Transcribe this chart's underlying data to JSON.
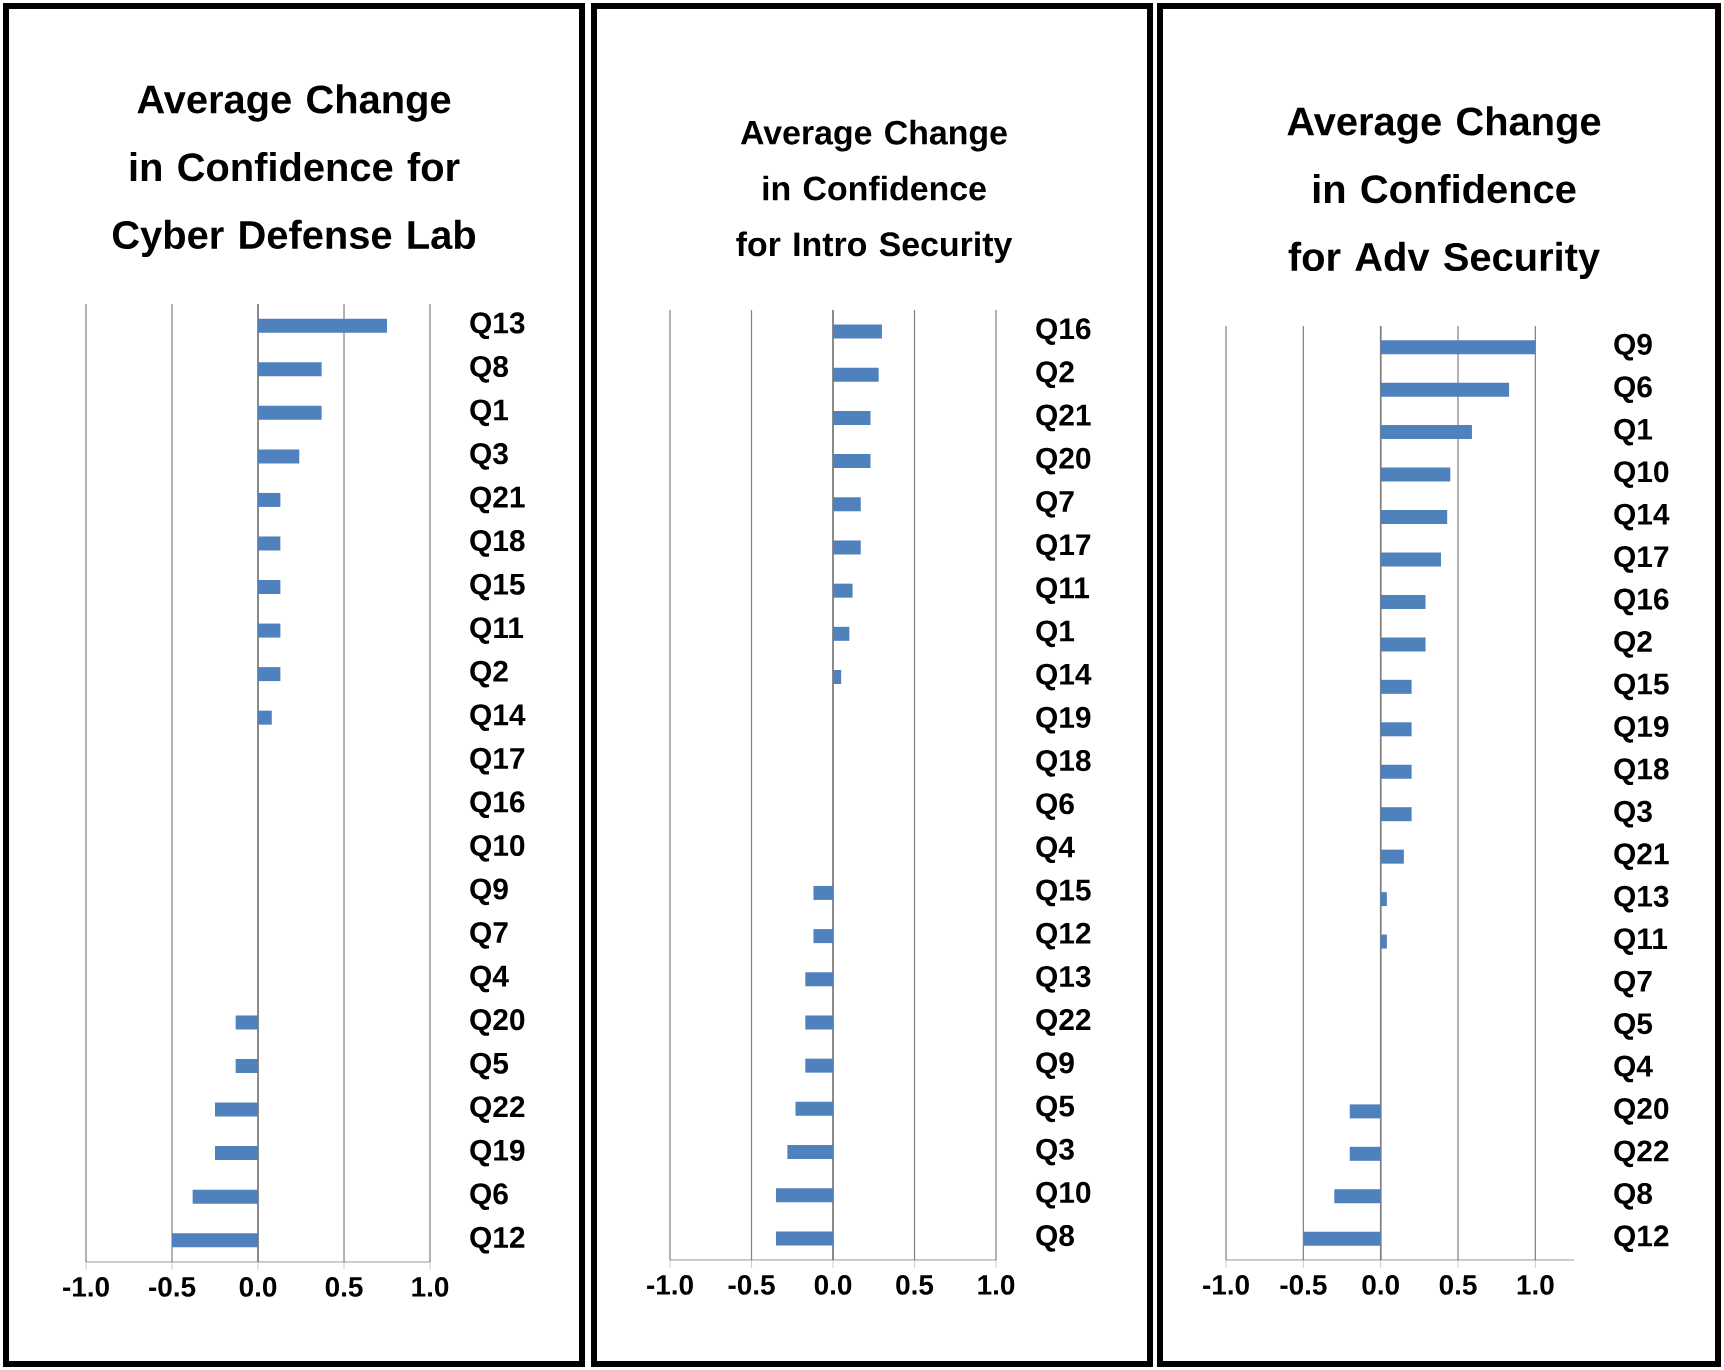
{
  "chart_data": [
    {
      "type": "bar",
      "orientation": "horizontal",
      "title": "Average Change in Confidence for Cyber Defense Lab",
      "color": "#4f81bd",
      "grid": "x",
      "categories": [
        "Q13",
        "Q8",
        "Q1",
        "Q3",
        "Q21",
        "Q18",
        "Q15",
        "Q11",
        "Q2",
        "Q14",
        "Q17",
        "Q16",
        "Q10",
        "Q9",
        "Q7",
        "Q4",
        "Q20",
        "Q5",
        "Q22",
        "Q19",
        "Q6",
        "Q12"
      ],
      "values": [
        0.75,
        0.37,
        0.37,
        0.24,
        0.13,
        0.13,
        0.13,
        0.13,
        0.13,
        0.08,
        0,
        0,
        0,
        0,
        0,
        0,
        -0.13,
        -0.13,
        -0.25,
        -0.25,
        -0.38,
        -0.5
      ],
      "xlim": [
        -1,
        1
      ],
      "xticks": [
        {
          "value": -1,
          "label": "-1.0"
        },
        {
          "value": -0.5,
          "label": "-0.5"
        },
        {
          "value": 0,
          "label": "0.0"
        },
        {
          "value": 0.5,
          "label": "0.5"
        },
        {
          "value": 1,
          "label": "1.0"
        }
      ]
    },
    {
      "type": "bar",
      "orientation": "horizontal",
      "title": "Average Change in Confidence for Intro Security",
      "color": "#4f81bd",
      "grid": "x",
      "categories": [
        "Q16",
        "Q2",
        "Q21",
        "Q20",
        "Q7",
        "Q17",
        "Q11",
        "Q1",
        "Q14",
        "Q19",
        "Q18",
        "Q6",
        "Q4",
        "Q15",
        "Q12",
        "Q13",
        "Q22",
        "Q9",
        "Q5",
        "Q3",
        "Q10",
        "Q8"
      ],
      "values": [
        0.3,
        0.28,
        0.23,
        0.23,
        0.17,
        0.17,
        0.12,
        0.1,
        0.05,
        0,
        0,
        0,
        0,
        -0.12,
        -0.12,
        -0.17,
        -0.17,
        -0.17,
        -0.23,
        -0.28,
        -0.35,
        -0.35
      ],
      "xlim": [
        -1,
        1
      ],
      "xticks": [
        {
          "value": -1,
          "label": "-1.0"
        },
        {
          "value": -0.5,
          "label": "-0.5"
        },
        {
          "value": 0,
          "label": "0.0"
        },
        {
          "value": 0.5,
          "label": "0.5"
        },
        {
          "value": 1,
          "label": "1.0"
        }
      ]
    },
    {
      "type": "bar",
      "orientation": "horizontal",
      "title": "Average Change in Confidence for Adv Security",
      "color": "#4f81bd",
      "grid": "x",
      "categories": [
        "Q9",
        "Q6",
        "Q1",
        "Q10",
        "Q14",
        "Q17",
        "Q16",
        "Q2",
        "Q15",
        "Q19",
        "Q18",
        "Q3",
        "Q21",
        "Q13",
        "Q11",
        "Q7",
        "Q5",
        "Q4",
        "Q20",
        "Q22",
        "Q8",
        "Q12"
      ],
      "values": [
        1.0,
        0.83,
        0.59,
        0.45,
        0.43,
        0.39,
        0.29,
        0.29,
        0.2,
        0.2,
        0.2,
        0.2,
        0.15,
        0.04,
        0.04,
        0,
        0,
        0,
        -0.2,
        -0.2,
        -0.3,
        -0.5
      ],
      "xlim": [
        -1,
        1.25
      ],
      "xticks": [
        {
          "value": -1,
          "label": "-1.0"
        },
        {
          "value": -0.5,
          "label": "-0.5"
        },
        {
          "value": 0,
          "label": "0.0"
        },
        {
          "value": 0.5,
          "label": "0.5"
        },
        {
          "value": 1,
          "label": "1.0"
        }
      ]
    }
  ]
}
